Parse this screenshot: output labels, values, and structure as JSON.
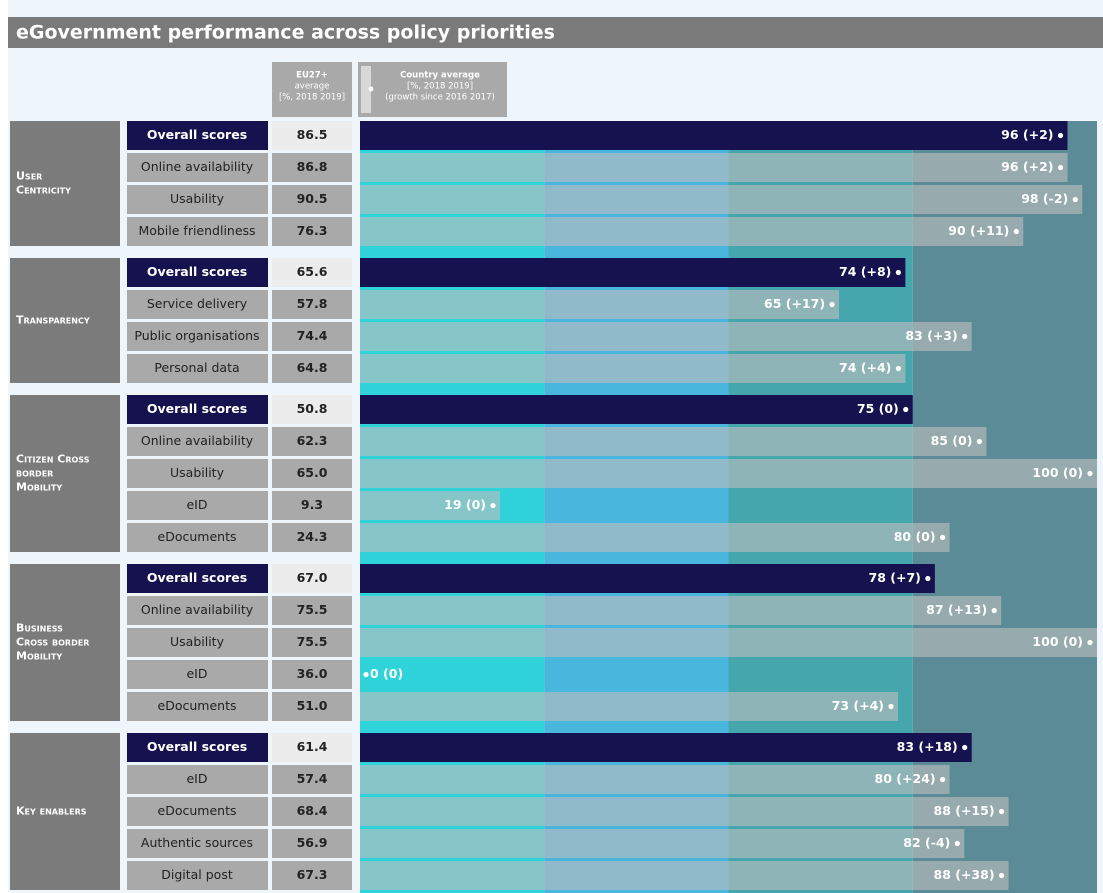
{
  "chart_data": {
    "type": "bar",
    "title": "eGovernment performance across policy priorities",
    "header": {
      "eu_average": [
        "EU27+",
        "average",
        "[%, 2018 2019]"
      ],
      "country_average": [
        "Country average",
        "[%, 2018 2019]",
        "(growth since 2016 2017)"
      ]
    },
    "xlim": [
      0,
      100
    ],
    "xticks": [
      0,
      25,
      50,
      75,
      100
    ],
    "band_colors": [
      "#2fd3d9",
      "#48b6dd",
      "#45a6ae",
      "#5a8b97"
    ],
    "overall_color": "#16124f",
    "bar_color": "#bdbdbd",
    "groups": [
      {
        "name": "User Centricity",
        "categories": [
          "Overall scores",
          "Online availability",
          "Usability",
          "Mobile friendliness"
        ],
        "eu_average": [
          "86.5",
          "86.8",
          "90.5",
          "76.3"
        ],
        "values": [
          96,
          96,
          98,
          90
        ],
        "value_labels": [
          "96 (+2)",
          "96 (+2)",
          "98 (-2)",
          "90 (+11)"
        ]
      },
      {
        "name": "Transparency",
        "categories": [
          "Overall scores",
          "Service delivery",
          "Public organisations",
          "Personal data"
        ],
        "eu_average": [
          "65.6",
          "57.8",
          "74.4",
          "64.8"
        ],
        "values": [
          74,
          65,
          83,
          74
        ],
        "value_labels": [
          "74 (+8)",
          "65 (+17)",
          "83 (+3)",
          "74 (+4)"
        ]
      },
      {
        "name": "Citizen Cross border Mobility",
        "categories": [
          "Overall scores",
          "Online availability",
          "Usability",
          "eID",
          "eDocuments"
        ],
        "eu_average": [
          "50.8",
          "62.3",
          "65.0",
          "9.3",
          "24.3"
        ],
        "values": [
          75,
          85,
          100,
          19,
          80
        ],
        "value_labels": [
          "75 (0)",
          "85 (0)",
          "100 (0)",
          "19 (0)",
          "80 (0)"
        ]
      },
      {
        "name": "Business Cross border Mobility",
        "categories": [
          "Overall scores",
          "Online availability",
          "Usability",
          "eID",
          "eDocuments"
        ],
        "eu_average": [
          "67.0",
          "75.5",
          "75.5",
          "36.0",
          "51.0"
        ],
        "values": [
          78,
          87,
          100,
          0,
          73
        ],
        "value_labels": [
          "78 (+7)",
          "87 (+13)",
          "100 (0)",
          "0 (0)",
          "73 (+4)"
        ]
      },
      {
        "name": "Key enablers",
        "categories": [
          "Overall scores",
          "eID",
          "eDocuments",
          "Authentic sources",
          "Digital post"
        ],
        "eu_average": [
          "61.4",
          "57.4",
          "68.4",
          "56.9",
          "67.3"
        ],
        "values": [
          83,
          80,
          88,
          82,
          88
        ],
        "value_labels": [
          "83 (+18)",
          "80 (+24)",
          "88 (+15)",
          "82 (-4)",
          "88 (+38)"
        ]
      }
    ]
  }
}
